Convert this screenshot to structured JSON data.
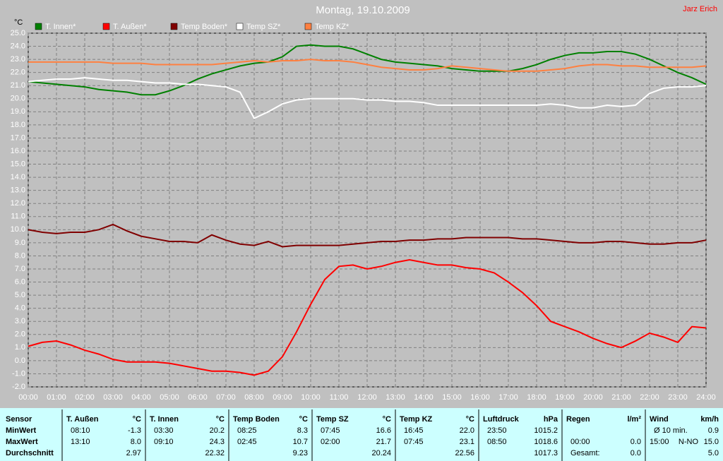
{
  "chart_data": {
    "type": "line",
    "title": "Montag, 19.10.2009",
    "author": "Jarz Erich",
    "ylabel": "°C",
    "x": [
      0,
      0.5,
      1,
      1.5,
      2,
      2.5,
      3,
      3.5,
      4,
      4.5,
      5,
      5.5,
      6,
      6.5,
      7,
      7.5,
      8,
      8.5,
      9,
      9.5,
      10,
      10.5,
      11,
      11.5,
      12,
      12.5,
      13,
      13.5,
      14,
      14.5,
      15,
      15.5,
      16,
      16.5,
      17,
      17.5,
      18,
      18.5,
      19,
      19.5,
      20,
      20.5,
      21,
      21.5,
      22,
      22.5,
      23,
      23.5,
      24
    ],
    "xlim": [
      0,
      24
    ],
    "xticks": [
      {
        "value": 0,
        "label": "00:00"
      },
      {
        "value": 1,
        "label": "01:00"
      },
      {
        "value": 2,
        "label": "02:00"
      },
      {
        "value": 3,
        "label": "03:00"
      },
      {
        "value": 4,
        "label": "04:00"
      },
      {
        "value": 5,
        "label": "05:00"
      },
      {
        "value": 6,
        "label": "06:00"
      },
      {
        "value": 7,
        "label": "07:00"
      },
      {
        "value": 8,
        "label": "08:00"
      },
      {
        "value": 9,
        "label": "09:00"
      },
      {
        "value": 10,
        "label": "10:00"
      },
      {
        "value": 11,
        "label": "11:00"
      },
      {
        "value": 12,
        "label": "12:00"
      },
      {
        "value": 13,
        "label": "13:00"
      },
      {
        "value": 14,
        "label": "14:00"
      },
      {
        "value": 15,
        "label": "15:00"
      },
      {
        "value": 16,
        "label": "16:00"
      },
      {
        "value": 17,
        "label": "17:00"
      },
      {
        "value": 18,
        "label": "18:00"
      },
      {
        "value": 19,
        "label": "19:00"
      },
      {
        "value": 20,
        "label": "20:00"
      },
      {
        "value": 21,
        "label": "21:00"
      },
      {
        "value": 22,
        "label": "22:00"
      },
      {
        "value": 23,
        "label": "23:00"
      },
      {
        "value": 24,
        "label": "24:00"
      }
    ],
    "ylim": [
      -2,
      25
    ],
    "yticks": [
      {
        "value": -2,
        "label": "-2.0"
      },
      {
        "value": -1,
        "label": "-1.0"
      },
      {
        "value": 0,
        "label": "0.0"
      },
      {
        "value": 1,
        "label": "1.0"
      },
      {
        "value": 2,
        "label": "2.0"
      },
      {
        "value": 3,
        "label": "3.0"
      },
      {
        "value": 4,
        "label": "4.0"
      },
      {
        "value": 5,
        "label": "5.0"
      },
      {
        "value": 6,
        "label": "6.0"
      },
      {
        "value": 7,
        "label": "7.0"
      },
      {
        "value": 8,
        "label": "8.0"
      },
      {
        "value": 9,
        "label": "9.0"
      },
      {
        "value": 10,
        "label": "10.0"
      },
      {
        "value": 11,
        "label": "11.0"
      },
      {
        "value": 12,
        "label": "12.0"
      },
      {
        "value": 13,
        "label": "13.0"
      },
      {
        "value": 14,
        "label": "14.0"
      },
      {
        "value": 15,
        "label": "15.0"
      },
      {
        "value": 16,
        "label": "16.0"
      },
      {
        "value": 17,
        "label": "17.0"
      },
      {
        "value": 18,
        "label": "18.0"
      },
      {
        "value": 19,
        "label": "19.0"
      },
      {
        "value": 20,
        "label": "20.0"
      },
      {
        "value": 21,
        "label": "21.0"
      },
      {
        "value": 22,
        "label": "22.0"
      },
      {
        "value": 23,
        "label": "23.0"
      },
      {
        "value": 24,
        "label": "24.0"
      },
      {
        "value": 25,
        "label": "25.0"
      }
    ],
    "grid": true,
    "series": [
      {
        "name": "T. Innen*",
        "color": "#008000",
        "values": [
          21.3,
          21.2,
          21.1,
          21.0,
          20.9,
          20.7,
          20.6,
          20.5,
          20.3,
          20.3,
          20.6,
          21.0,
          21.5,
          21.9,
          22.2,
          22.5,
          22.7,
          22.8,
          23.2,
          24.0,
          24.1,
          24.0,
          24.0,
          23.8,
          23.4,
          23.0,
          22.8,
          22.7,
          22.6,
          22.5,
          22.3,
          22.2,
          22.1,
          22.1,
          22.1,
          22.3,
          22.6,
          23.0,
          23.3,
          23.5,
          23.5,
          23.6,
          23.6,
          23.4,
          23.0,
          22.5,
          22.0,
          21.6,
          21.1
        ]
      },
      {
        "name": "T. Außen*",
        "color": "#ff0000",
        "values": [
          1.1,
          1.4,
          1.5,
          1.2,
          0.8,
          0.5,
          0.1,
          -0.1,
          -0.1,
          -0.1,
          -0.2,
          -0.4,
          -0.6,
          -0.8,
          -0.8,
          -0.9,
          -1.1,
          -0.8,
          0.3,
          2.2,
          4.3,
          6.2,
          7.2,
          7.3,
          7.0,
          7.2,
          7.5,
          7.7,
          7.5,
          7.3,
          7.3,
          7.1,
          7.0,
          6.7,
          6.0,
          5.2,
          4.2,
          3.0,
          2.6,
          2.2,
          1.7,
          1.3,
          1.0,
          1.5,
          2.1,
          1.8,
          1.4,
          2.6,
          2.5
        ]
      },
      {
        "name": "Temp Boden*",
        "color": "#800000",
        "values": [
          10.0,
          9.8,
          9.7,
          9.8,
          9.8,
          10.0,
          10.4,
          9.9,
          9.5,
          9.3,
          9.1,
          9.1,
          9.0,
          9.6,
          9.2,
          8.9,
          8.8,
          9.1,
          8.7,
          8.8,
          8.8,
          8.8,
          8.8,
          8.9,
          9.0,
          9.1,
          9.1,
          9.2,
          9.2,
          9.3,
          9.3,
          9.4,
          9.4,
          9.4,
          9.4,
          9.3,
          9.3,
          9.2,
          9.1,
          9.0,
          9.0,
          9.1,
          9.1,
          9.0,
          8.9,
          8.9,
          9.0,
          9.0,
          9.2
        ]
      },
      {
        "name": "Temp SZ*",
        "color": "#ffffff",
        "values": [
          21.3,
          21.4,
          21.5,
          21.5,
          21.6,
          21.5,
          21.4,
          21.4,
          21.3,
          21.2,
          21.2,
          21.1,
          21.1,
          21.0,
          20.9,
          20.5,
          18.5,
          19.0,
          19.6,
          19.9,
          20.0,
          20.0,
          20.0,
          20.0,
          19.9,
          19.9,
          19.8,
          19.8,
          19.7,
          19.5,
          19.5,
          19.5,
          19.5,
          19.5,
          19.5,
          19.5,
          19.5,
          19.6,
          19.5,
          19.3,
          19.3,
          19.5,
          19.4,
          19.5,
          20.4,
          20.8,
          20.9,
          20.9,
          21.0
        ]
      },
      {
        "name": "Temp KZ*",
        "color": "#ff8040",
        "values": [
          22.8,
          22.8,
          22.8,
          22.8,
          22.8,
          22.8,
          22.7,
          22.7,
          22.7,
          22.6,
          22.6,
          22.6,
          22.6,
          22.6,
          22.7,
          22.8,
          22.9,
          22.8,
          22.9,
          22.9,
          23.0,
          22.9,
          22.9,
          22.8,
          22.6,
          22.4,
          22.3,
          22.2,
          22.2,
          22.3,
          22.5,
          22.4,
          22.3,
          22.2,
          22.1,
          22.1,
          22.1,
          22.2,
          22.3,
          22.5,
          22.6,
          22.6,
          22.5,
          22.5,
          22.4,
          22.4,
          22.4,
          22.4,
          22.5
        ]
      }
    ]
  },
  "table": {
    "row_labels": [
      "Sensor",
      "MinWert",
      "MaxWert",
      "Durchschnitt"
    ],
    "groups": [
      {
        "name": "T. Außen",
        "unit": "°C",
        "rows": [
          [
            "08:10",
            "-1.3"
          ],
          [
            "13:10",
            "8.0"
          ],
          [
            "2.97"
          ]
        ]
      },
      {
        "name": "T. Innen",
        "unit": "°C",
        "rows": [
          [
            "03:30",
            "20.2"
          ],
          [
            "09:10",
            "24.3"
          ],
          [
            "22.32"
          ]
        ]
      },
      {
        "name": "Temp Boden",
        "unit": "°C",
        "rows": [
          [
            "08:25",
            "8.3"
          ],
          [
            "02:45",
            "10.7"
          ],
          [
            "9.23"
          ]
        ]
      },
      {
        "name": "Temp SZ",
        "unit": "°C",
        "rows": [
          [
            "07:45",
            "16.6"
          ],
          [
            "02:00",
            "21.7"
          ],
          [
            "20.24"
          ]
        ]
      },
      {
        "name": "Temp KZ",
        "unit": "°C",
        "rows": [
          [
            "16:45",
            "22.0"
          ],
          [
            "07:45",
            "23.1"
          ],
          [
            "22.56"
          ]
        ]
      },
      {
        "name": "Luftdruck",
        "unit": "hPa",
        "rows": [
          [
            "23:50",
            "1015.2"
          ],
          [
            "08:50",
            "1018.6"
          ],
          [
            "1017.3"
          ]
        ]
      },
      {
        "name": "Regen",
        "unit": "l/m²",
        "rows": [
          [],
          [
            "00:00",
            "0.0"
          ],
          [
            "Gesamt:",
            "0.0"
          ]
        ]
      },
      {
        "name": "Wind",
        "unit": "km/h",
        "rows": [
          [
            "Ø 10 min.",
            "0.9"
          ],
          [
            "15:00",
            "N-NO",
            "15.0"
          ],
          [
            "5.0"
          ]
        ]
      }
    ]
  }
}
